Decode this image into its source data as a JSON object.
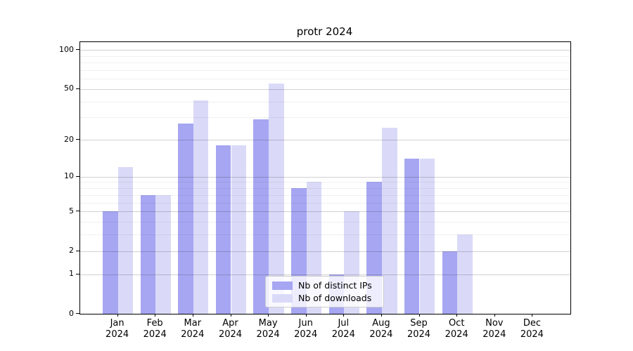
{
  "title": "protr 2024",
  "legend": {
    "items": [
      {
        "label": "Nb of distinct IPs"
      },
      {
        "label": "Nb of downloads"
      }
    ]
  },
  "chart_data": {
    "type": "bar",
    "title": "protr 2024",
    "categories": [
      "Jan",
      "Feb",
      "Mar",
      "Apr",
      "May",
      "Jun",
      "Jul",
      "Aug",
      "Sep",
      "Oct",
      "Nov",
      "Dec"
    ],
    "year": "2024",
    "series": [
      {
        "name": "Nb of distinct IPs",
        "color": "#a6a6f2",
        "values": [
          5,
          7,
          27,
          18,
          29,
          8,
          1,
          9,
          14,
          2,
          0,
          0
        ]
      },
      {
        "name": "Nb of downloads",
        "color": "#dadaf8",
        "values": [
          12,
          7,
          41,
          18,
          55,
          9,
          5,
          25,
          14,
          3,
          0,
          0
        ]
      }
    ],
    "xlabel": "",
    "ylabel": "",
    "yscale": "log1p",
    "ylim": [
      0,
      114.6
    ],
    "yticks": [
      0,
      1,
      2,
      5,
      10,
      20,
      50,
      100
    ],
    "yticks_minor": [
      3,
      4,
      6,
      7,
      8,
      9,
      30,
      40,
      60,
      70,
      80,
      90
    ],
    "grid": true,
    "legend_position": "lower center"
  },
  "colors": {
    "bar_distinct_ips": "#a6a6f2",
    "bar_downloads": "#dadaf8",
    "axis": "#000000",
    "background": "#ffffff"
  }
}
